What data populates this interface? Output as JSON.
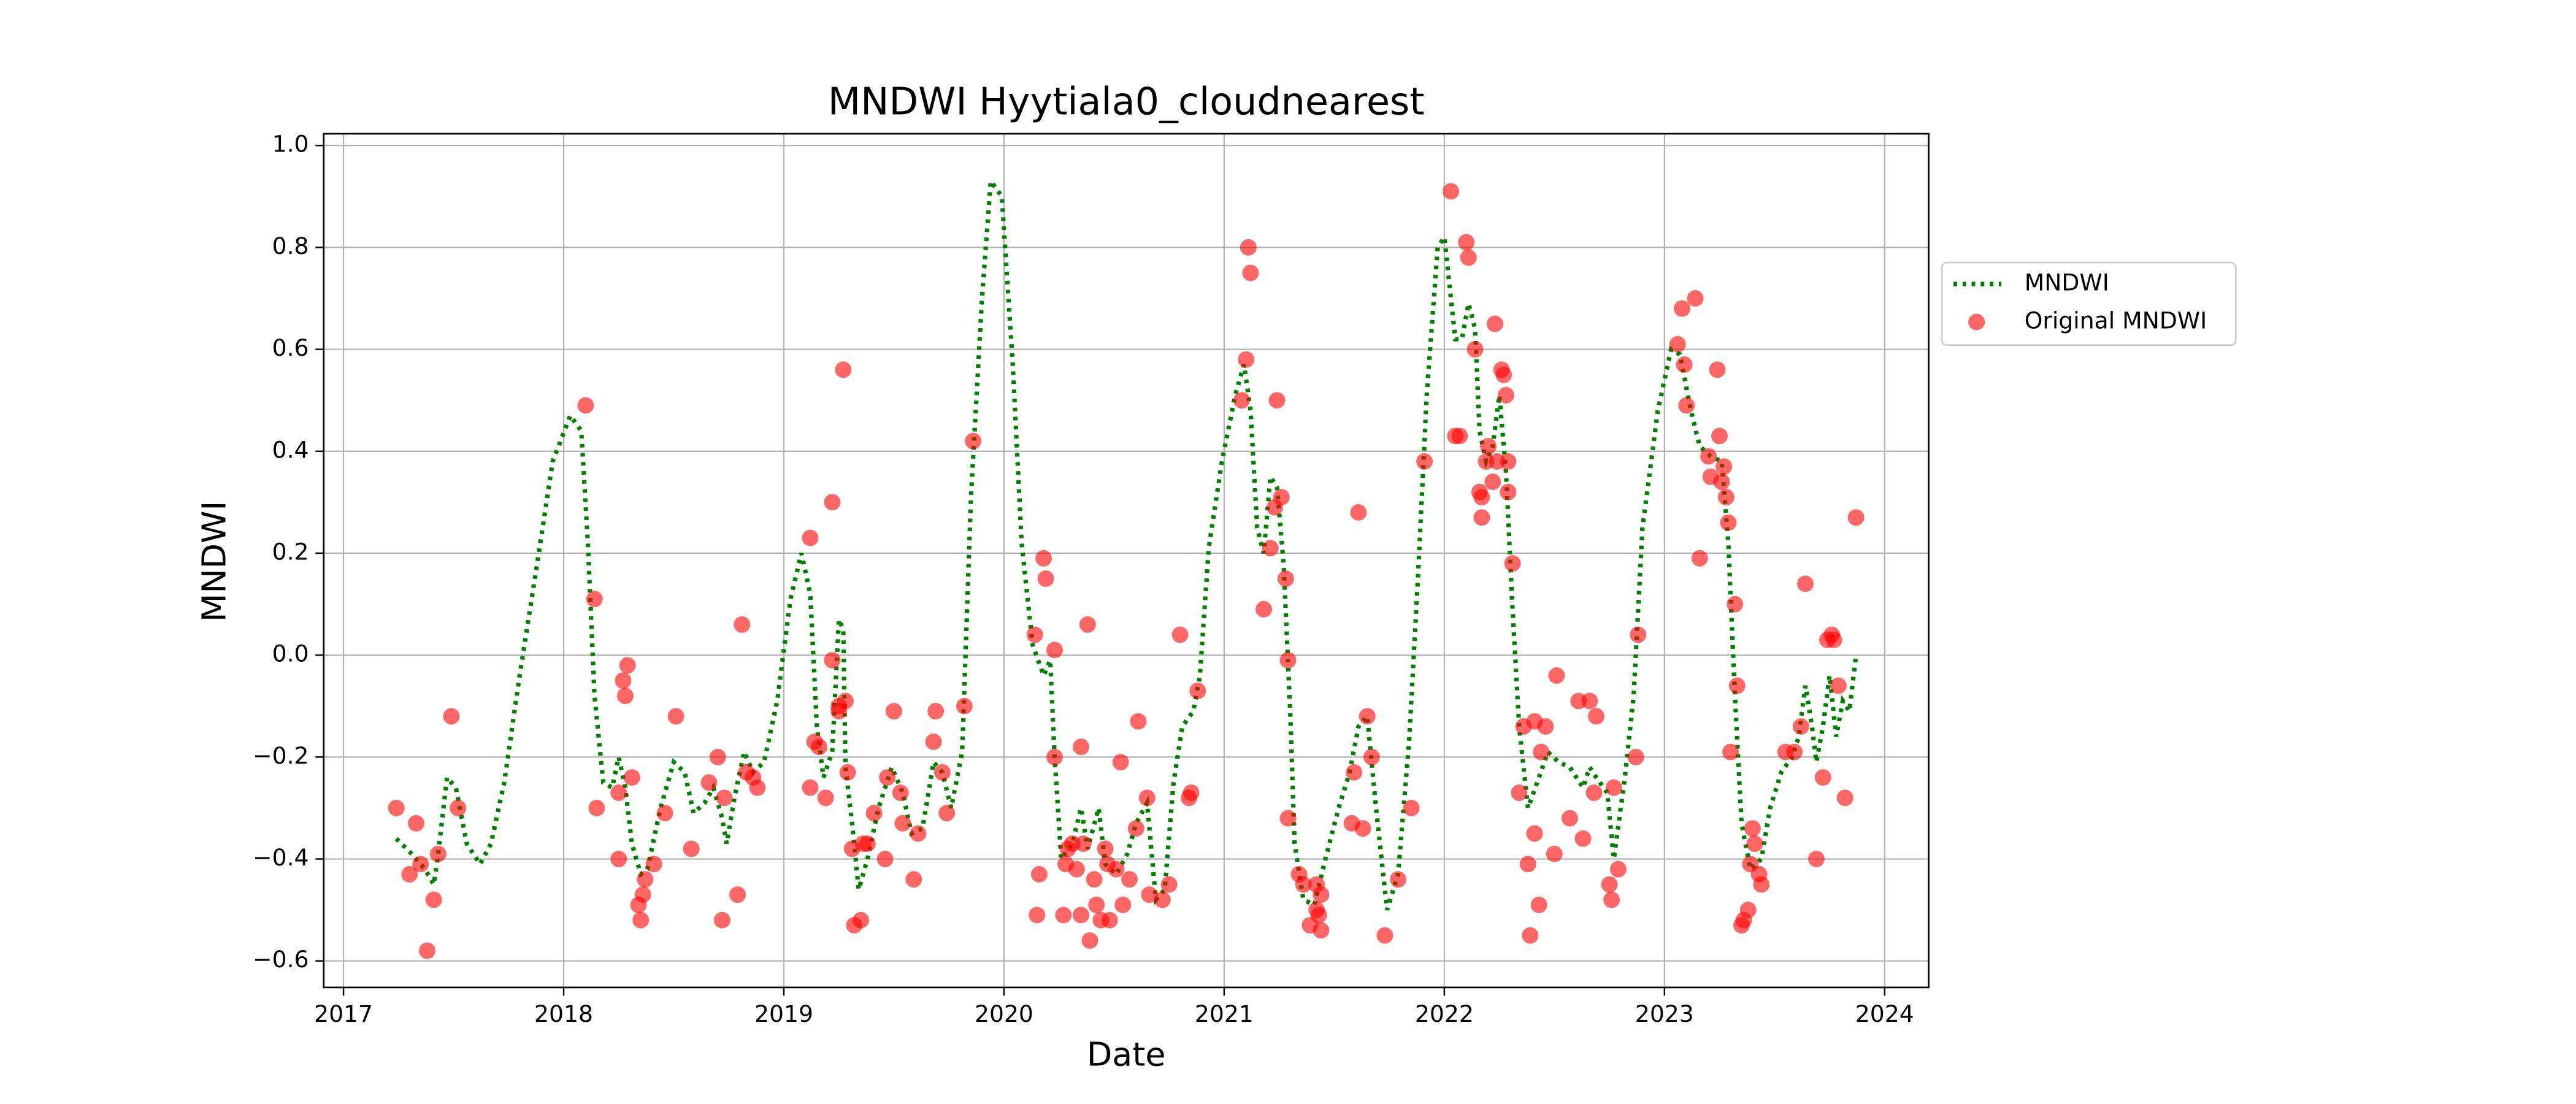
{
  "chart_data": {
    "type": "line",
    "title": "MNDWI Hyytiala0_cloudnearest",
    "x_label": "Date",
    "y_label": "MNDWI",
    "xlim": [
      2016.91,
      2024.2
    ],
    "xticks": [
      2017,
      2018,
      2019,
      2020,
      2021,
      2022,
      2023,
      2024
    ],
    "ylim": [
      -0.652,
      1.023
    ],
    "yticks": [
      {
        "value": 1.0,
        "label": "1.0"
      },
      0.8,
      0.6,
      0.4,
      0.2,
      {
        "value": 0.0,
        "label": "0.0"
      },
      {
        "value": -0.2,
        "label": "−0.2"
      },
      {
        "value": -0.4,
        "label": "−0.4"
      },
      {
        "value": -0.6,
        "label": "−0.6"
      }
    ],
    "grid": true,
    "legend": "outside right",
    "series": [
      {
        "name": "MNDWI",
        "type": "line",
        "style": "dotted",
        "color": "#008000",
        "x": [
          2017.24,
          2017.31,
          2017.37,
          2017.41,
          2017.43,
          2017.47,
          2017.51,
          2017.56,
          2017.62,
          2017.67,
          2017.73,
          2017.8,
          2017.88,
          2017.95,
          2018.03,
          2018.08,
          2018.11,
          2018.14,
          2018.18,
          2018.22,
          2018.25,
          2018.28,
          2018.31,
          2018.35,
          2018.38,
          2018.44,
          2018.5,
          2018.55,
          2018.59,
          2018.64,
          2018.68,
          2018.72,
          2018.74,
          2018.78,
          2018.82,
          2018.86,
          2018.91,
          2018.97,
          2019.03,
          2019.08,
          2019.12,
          2019.15,
          2019.18,
          2019.22,
          2019.25,
          2019.27,
          2019.28,
          2019.31,
          2019.34,
          2019.38,
          2019.43,
          2019.49,
          2019.54,
          2019.58,
          2019.63,
          2019.68,
          2019.72,
          2019.76,
          2019.81,
          2019.85,
          2019.9,
          2019.94,
          2019.99,
          2020.04,
          2020.08,
          2020.13,
          2020.18,
          2020.21,
          2020.23,
          2020.26,
          2020.31,
          2020.35,
          2020.38,
          2020.43,
          2020.46,
          2020.51,
          2020.56,
          2020.6,
          2020.65,
          2020.69,
          2020.73,
          2020.77,
          2020.81,
          2020.86,
          2020.89,
          2020.93,
          2020.99,
          2021.05,
          2021.09,
          2021.12,
          2021.15,
          2021.18,
          2021.21,
          2021.24,
          2021.27,
          2021.3,
          2021.32,
          2021.36,
          2021.41,
          2021.46,
          2021.52,
          2021.57,
          2021.61,
          2021.65,
          2021.69,
          2021.74,
          2021.79,
          2021.84,
          2021.88,
          2021.92,
          2021.97,
          2022.0,
          2022.05,
          2022.08,
          2022.11,
          2022.14,
          2022.16,
          2022.19,
          2022.22,
          2022.25,
          2022.28,
          2022.31,
          2022.34,
          2022.38,
          2022.43,
          2022.47,
          2022.52,
          2022.57,
          2022.63,
          2022.66,
          2022.69,
          2022.74,
          2022.77,
          2022.82,
          2022.86,
          2022.9,
          2022.97,
          2023.03,
          2023.07,
          2023.12,
          2023.16,
          2023.21,
          2023.26,
          2023.29,
          2023.32,
          2023.35,
          2023.39,
          2023.44,
          2023.48,
          2023.53,
          2023.58,
          2023.61,
          2023.64,
          2023.67,
          2023.69,
          2023.72,
          2023.75,
          2023.78,
          2023.81,
          2023.84,
          2023.87
        ],
        "values": [
          -0.36,
          -0.39,
          -0.42,
          -0.45,
          -0.39,
          -0.24,
          -0.26,
          -0.37,
          -0.41,
          -0.37,
          -0.25,
          -0.04,
          0.18,
          0.38,
          0.47,
          0.44,
          0.22,
          -0.08,
          -0.25,
          -0.26,
          -0.2,
          -0.26,
          -0.37,
          -0.43,
          -0.42,
          -0.3,
          -0.21,
          -0.23,
          -0.31,
          -0.29,
          -0.26,
          -0.32,
          -0.37,
          -0.27,
          -0.19,
          -0.23,
          -0.21,
          -0.09,
          0.11,
          0.2,
          0.12,
          -0.14,
          -0.24,
          -0.19,
          0.07,
          0.05,
          -0.22,
          -0.33,
          -0.46,
          -0.4,
          -0.3,
          -0.22,
          -0.27,
          -0.35,
          -0.34,
          -0.21,
          -0.23,
          -0.3,
          -0.19,
          0.31,
          0.7,
          0.93,
          0.9,
          0.57,
          0.22,
          0.02,
          -0.04,
          -0.01,
          -0.2,
          -0.4,
          -0.37,
          -0.3,
          -0.38,
          -0.3,
          -0.41,
          -0.43,
          -0.39,
          -0.33,
          -0.29,
          -0.48,
          -0.46,
          -0.25,
          -0.14,
          -0.11,
          -0.04,
          0.21,
          0.38,
          0.51,
          0.57,
          0.48,
          0.25,
          0.2,
          0.35,
          0.33,
          0.18,
          -0.11,
          -0.37,
          -0.48,
          -0.49,
          -0.4,
          -0.3,
          -0.23,
          -0.14,
          -0.12,
          -0.3,
          -0.5,
          -0.43,
          -0.17,
          0.15,
          0.51,
          0.8,
          0.82,
          0.62,
          0.62,
          0.69,
          0.64,
          0.44,
          0.38,
          0.41,
          0.51,
          0.36,
          0.09,
          -0.14,
          -0.3,
          -0.24,
          -0.19,
          -0.21,
          -0.22,
          -0.26,
          -0.22,
          -0.24,
          -0.27,
          -0.4,
          -0.24,
          -0.08,
          0.25,
          0.48,
          0.6,
          0.59,
          0.48,
          0.41,
          0.39,
          0.38,
          0.22,
          -0.08,
          -0.33,
          -0.42,
          -0.4,
          -0.3,
          -0.23,
          -0.2,
          -0.16,
          -0.06,
          -0.14,
          -0.21,
          -0.14,
          -0.04,
          -0.16,
          -0.09,
          -0.11,
          0.0
        ]
      },
      {
        "name": "Original MNDWI",
        "type": "scatter",
        "color": "#ff0000",
        "x": [
          2017.24,
          2017.3,
          2017.33,
          2017.35,
          2017.38,
          2017.41,
          2017.43,
          2017.49,
          2017.52,
          2018.1,
          2018.14,
          2018.15,
          2018.25,
          2018.25,
          2018.27,
          2018.28,
          2018.29,
          2018.31,
          2018.34,
          2018.35,
          2018.36,
          2018.37,
          2018.41,
          2018.46,
          2018.51,
          2018.58,
          2018.66,
          2018.7,
          2018.72,
          2018.73,
          2018.79,
          2018.81,
          2018.83,
          2018.86,
          2018.88,
          2019.12,
          2019.12,
          2019.14,
          2019.16,
          2019.19,
          2019.22,
          2019.22,
          2019.25,
          2019.25,
          2019.27,
          2019.28,
          2019.29,
          2019.31,
          2019.32,
          2019.35,
          2019.36,
          2019.38,
          2019.41,
          2019.46,
          2019.47,
          2019.5,
          2019.53,
          2019.54,
          2019.59,
          2019.61,
          2019.68,
          2019.69,
          2019.72,
          2019.74,
          2019.82,
          2019.86,
          2020.14,
          2020.15,
          2020.16,
          2020.18,
          2020.19,
          2020.23,
          2020.23,
          2020.27,
          2020.28,
          2020.29,
          2020.31,
          2020.33,
          2020.35,
          2020.35,
          2020.36,
          2020.38,
          2020.39,
          2020.41,
          2020.42,
          2020.44,
          2020.46,
          2020.47,
          2020.48,
          2020.51,
          2020.53,
          2020.54,
          2020.57,
          2020.6,
          2020.61,
          2020.65,
          2020.66,
          2020.72,
          2020.75,
          2020.8,
          2020.84,
          2020.85,
          2020.88,
          2021.08,
          2021.1,
          2021.11,
          2021.12,
          2021.18,
          2021.21,
          2021.23,
          2021.24,
          2021.26,
          2021.28,
          2021.29,
          2021.29,
          2021.34,
          2021.36,
          2021.39,
          2021.42,
          2021.42,
          2021.43,
          2021.44,
          2021.44,
          2021.58,
          2021.59,
          2021.61,
          2021.63,
          2021.65,
          2021.67,
          2021.73,
          2021.79,
          2021.85,
          2021.91,
          2022.03,
          2022.05,
          2022.07,
          2022.1,
          2022.11,
          2022.14,
          2022.16,
          2022.17,
          2022.17,
          2022.19,
          2022.2,
          2022.22,
          2022.23,
          2022.24,
          2022.26,
          2022.27,
          2022.28,
          2022.29,
          2022.29,
          2022.31,
          2022.34,
          2022.36,
          2022.38,
          2022.39,
          2022.41,
          2022.41,
          2022.43,
          2022.44,
          2022.46,
          2022.5,
          2022.51,
          2022.57,
          2022.61,
          2022.63,
          2022.66,
          2022.68,
          2022.69,
          2022.75,
          2022.76,
          2022.77,
          2022.79,
          2022.87,
          2022.88,
          2023.06,
          2023.08,
          2023.09,
          2023.1,
          2023.14,
          2023.16,
          2023.2,
          2023.21,
          2023.24,
          2023.25,
          2023.26,
          2023.27,
          2023.28,
          2023.29,
          2023.3,
          2023.32,
          2023.33,
          2023.35,
          2023.36,
          2023.38,
          2023.39,
          2023.4,
          2023.41,
          2023.43,
          2023.44,
          2023.55,
          2023.59,
          2023.62,
          2023.64,
          2023.69,
          2023.72,
          2023.74,
          2023.76,
          2023.77,
          2023.79,
          2023.82,
          2023.87
        ],
        "values": [
          -0.3,
          -0.43,
          -0.33,
          -0.41,
          -0.58,
          -0.48,
          -0.39,
          -0.12,
          -0.3,
          0.49,
          0.11,
          -0.3,
          -0.4,
          -0.27,
          -0.05,
          -0.08,
          -0.02,
          -0.24,
          -0.49,
          -0.52,
          -0.47,
          -0.44,
          -0.41,
          -0.31,
          -0.12,
          -0.38,
          -0.25,
          -0.2,
          -0.52,
          -0.28,
          -0.47,
          0.06,
          -0.23,
          -0.24,
          -0.26,
          0.23,
          -0.26,
          -0.17,
          -0.18,
          -0.28,
          0.3,
          -0.01,
          -0.1,
          -0.11,
          0.56,
          -0.09,
          -0.23,
          -0.38,
          -0.53,
          -0.52,
          -0.37,
          -0.37,
          -0.31,
          -0.4,
          -0.24,
          -0.11,
          -0.27,
          -0.33,
          -0.44,
          -0.35,
          -0.17,
          -0.11,
          -0.23,
          -0.31,
          -0.1,
          0.42,
          0.04,
          -0.51,
          -0.43,
          0.19,
          0.15,
          0.01,
          -0.2,
          -0.51,
          -0.41,
          -0.38,
          -0.37,
          -0.42,
          -0.18,
          -0.51,
          -0.37,
          0.06,
          -0.56,
          -0.44,
          -0.49,
          -0.52,
          -0.38,
          -0.41,
          -0.52,
          -0.42,
          -0.21,
          -0.49,
          -0.44,
          -0.34,
          -0.13,
          -0.28,
          -0.47,
          -0.48,
          -0.45,
          0.04,
          -0.28,
          -0.27,
          -0.07,
          0.5,
          0.58,
          0.8,
          0.75,
          0.09,
          0.21,
          0.29,
          0.5,
          0.31,
          0.15,
          -0.01,
          -0.32,
          -0.43,
          -0.45,
          -0.53,
          -0.45,
          -0.5,
          -0.51,
          -0.47,
          -0.54,
          -0.33,
          -0.23,
          0.28,
          -0.34,
          -0.12,
          -0.2,
          -0.55,
          -0.44,
          -0.3,
          0.38,
          0.91,
          0.43,
          0.43,
          0.81,
          0.78,
          0.6,
          0.32,
          0.27,
          0.31,
          0.38,
          0.41,
          0.34,
          0.65,
          0.38,
          0.56,
          0.55,
          0.51,
          0.38,
          0.32,
          0.18,
          -0.27,
          -0.14,
          -0.41,
          -0.55,
          -0.35,
          -0.13,
          -0.49,
          -0.19,
          -0.14,
          -0.39,
          -0.04,
          -0.32,
          -0.09,
          -0.36,
          -0.09,
          -0.27,
          -0.12,
          -0.45,
          -0.48,
          -0.26,
          -0.42,
          -0.2,
          0.04,
          0.61,
          0.68,
          0.57,
          0.49,
          0.7,
          0.19,
          0.39,
          0.35,
          0.56,
          0.43,
          0.34,
          0.37,
          0.31,
          0.26,
          -0.19,
          0.1,
          -0.06,
          -0.53,
          -0.52,
          -0.5,
          -0.41,
          -0.34,
          -0.37,
          -0.43,
          -0.45,
          -0.19,
          -0.19,
          -0.14,
          0.14,
          -0.4,
          -0.24,
          0.03,
          0.04,
          0.03,
          -0.06,
          -0.28,
          0.27
        ]
      }
    ]
  }
}
